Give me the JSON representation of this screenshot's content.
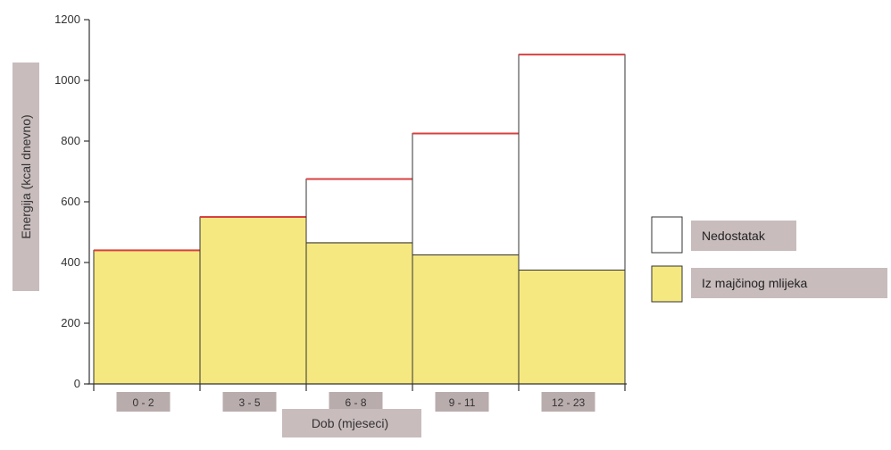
{
  "chart_data": {
    "type": "bar",
    "stacked": true,
    "categories": [
      "0 - 2",
      "3 - 5",
      "6 - 8",
      "9 - 11",
      "12 - 23"
    ],
    "series": [
      {
        "name": "Iz majčinog mlijeka",
        "values": [
          440,
          550,
          465,
          425,
          375
        ],
        "color": "#f5e880"
      },
      {
        "name": "Nedostatak",
        "values": [
          0,
          0,
          210,
          400,
          710
        ],
        "color": "#ffffff"
      }
    ],
    "totals": [
      440,
      550,
      675,
      825,
      1085
    ],
    "total_line_color": "#d84040",
    "xlabel": "Dob (mjeseci)",
    "ylabel": "Energija (kcal dnevno)",
    "ylim": [
      0,
      1200
    ],
    "yticks": [
      0,
      200,
      400,
      600,
      800,
      1000,
      1200
    ],
    "ytick_labels": [
      "0",
      "200",
      "400",
      "600",
      "800",
      "1000",
      "1200"
    ],
    "grid": false,
    "legend_position": "right",
    "legend": [
      {
        "label": "Nedostatak",
        "color": "#ffffff"
      },
      {
        "label": "Iz majčinog mlijeka",
        "color": "#f5e880"
      }
    ]
  }
}
